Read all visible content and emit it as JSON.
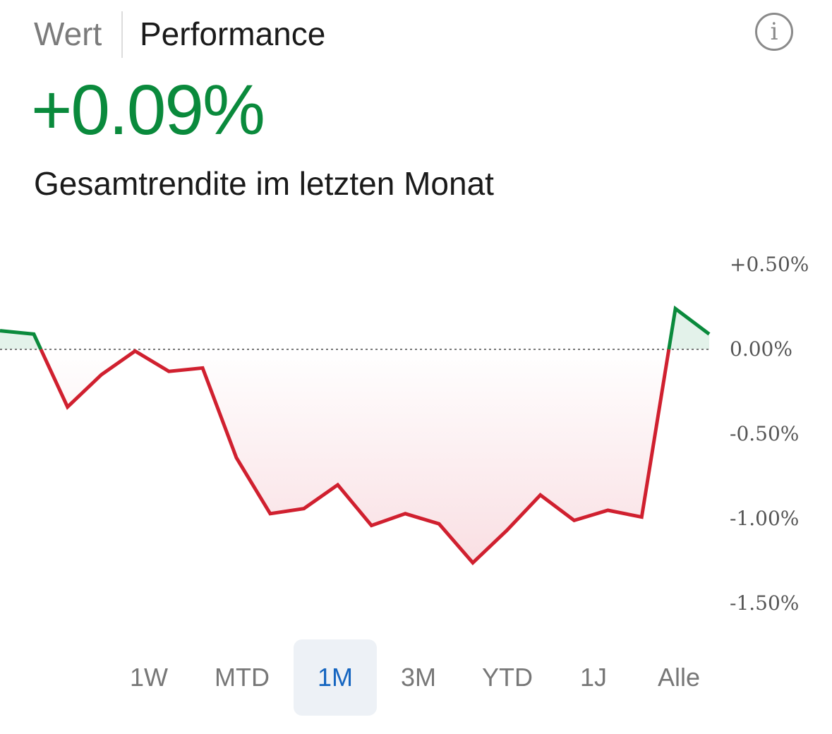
{
  "header": {
    "tab_wert": "Wert",
    "tab_performance": "Performance",
    "info_icon": "info-circle-icon",
    "info_glyph": "i"
  },
  "headline": {
    "value": "+0.09%",
    "caption": "Gesamtrendite im letzten Monat",
    "value_color": "#0a8a3c"
  },
  "chart_data": {
    "type": "area",
    "ylim": [
      -1.6,
      0.5
    ],
    "baseline": 0,
    "y_ticks": [
      "+0.50%",
      "0.00%",
      "-0.50%",
      "-1.00%",
      "-1.50%"
    ],
    "y_tick_values": [
      0.5,
      0.0,
      -0.5,
      -1.0,
      -1.5
    ],
    "grid": false,
    "series": [
      {
        "values": [
          0.11,
          0.09,
          -0.34,
          -0.15,
          -0.01,
          -0.13,
          -0.11,
          -0.64,
          -0.97,
          -0.94,
          -0.8,
          -1.04,
          -0.97,
          -1.03,
          -1.26,
          -1.07,
          -0.86,
          -1.01,
          -0.95,
          -0.99,
          0.24,
          0.09
        ]
      }
    ],
    "colors": {
      "positive": "#0a8a3c",
      "negative": "#d0202f",
      "positive_fill": "#e3f2ea",
      "negative_fill": "#f9dfe3"
    }
  },
  "ranges": [
    {
      "label": "1W",
      "active": false
    },
    {
      "label": "MTD",
      "active": false
    },
    {
      "label": "1M",
      "active": true
    },
    {
      "label": "3M",
      "active": false
    },
    {
      "label": "YTD",
      "active": false
    },
    {
      "label": "1J",
      "active": false
    },
    {
      "label": "Alle",
      "active": false
    }
  ]
}
